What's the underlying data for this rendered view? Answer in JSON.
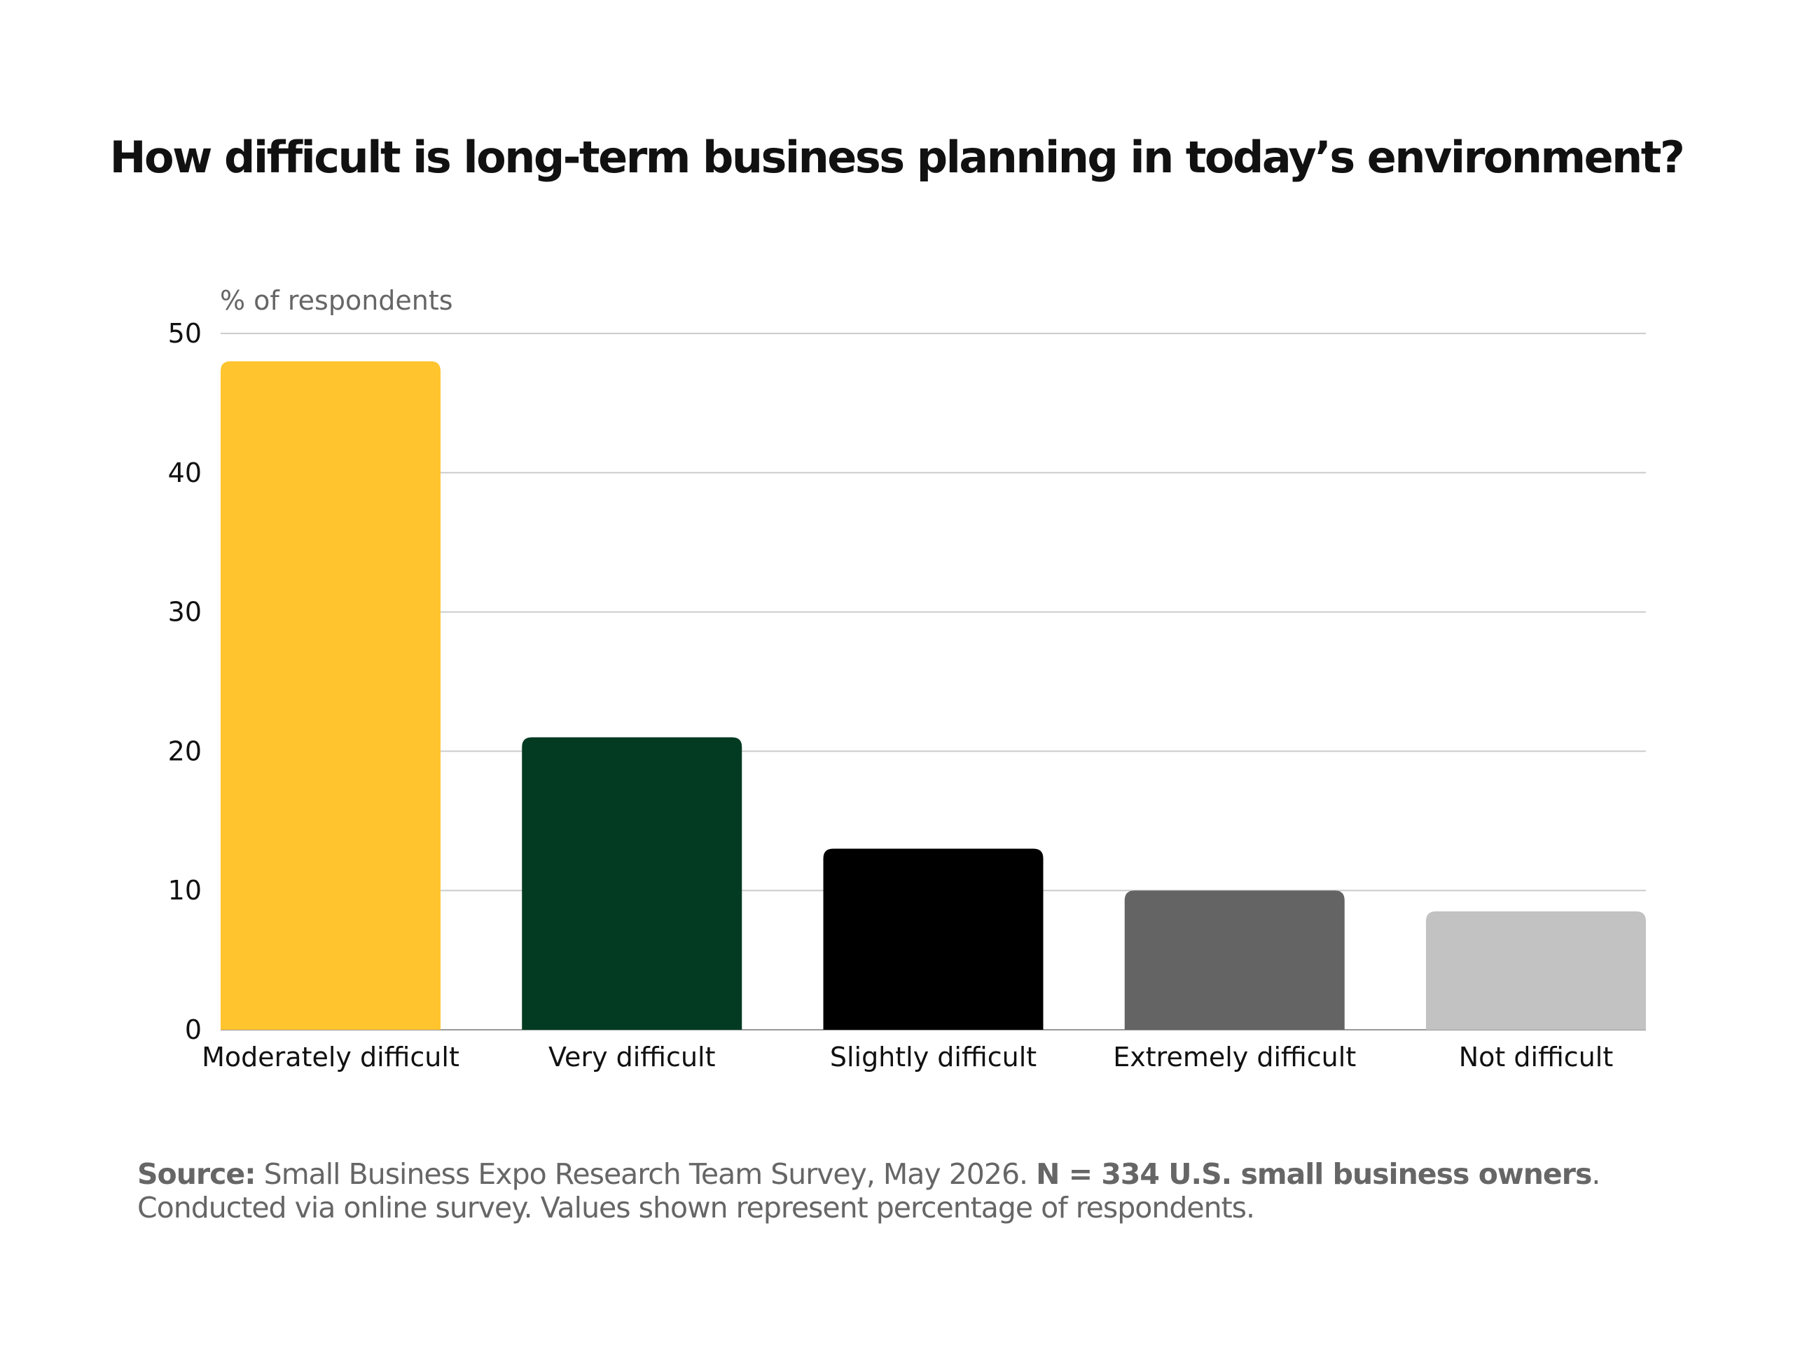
{
  "title": "How difficult is long-term business planning in today’s environment?",
  "chart_data": {
    "type": "bar",
    "title": "How difficult is long-term business planning in today’s environment?",
    "ylabel": "% of respondents",
    "xlabel": "",
    "ylim": [
      0,
      50
    ],
    "yticks": [
      0,
      10,
      20,
      30,
      40,
      50
    ],
    "grid": true,
    "categories": [
      "Moderately difficult",
      "Very difficult",
      "Slightly difficult",
      "Extremely difficult",
      "Not difficult"
    ],
    "values": [
      48,
      21,
      13,
      10,
      8.5
    ],
    "colors": [
      "#FFC42E",
      "#023A22",
      "#000000",
      "#646464",
      "#C2C2C2"
    ],
    "gridline_color": "#CCCCCC",
    "axis_color": "#999999"
  },
  "footnote": {
    "source_label": "Source:",
    "source_text": "Small Business Expo Research Team Survey, May 2026.",
    "sample_bold": "N = 334 U.S. small business owners",
    "rest": ". Conducted via online survey. Values shown represent percentage of respondents."
  }
}
